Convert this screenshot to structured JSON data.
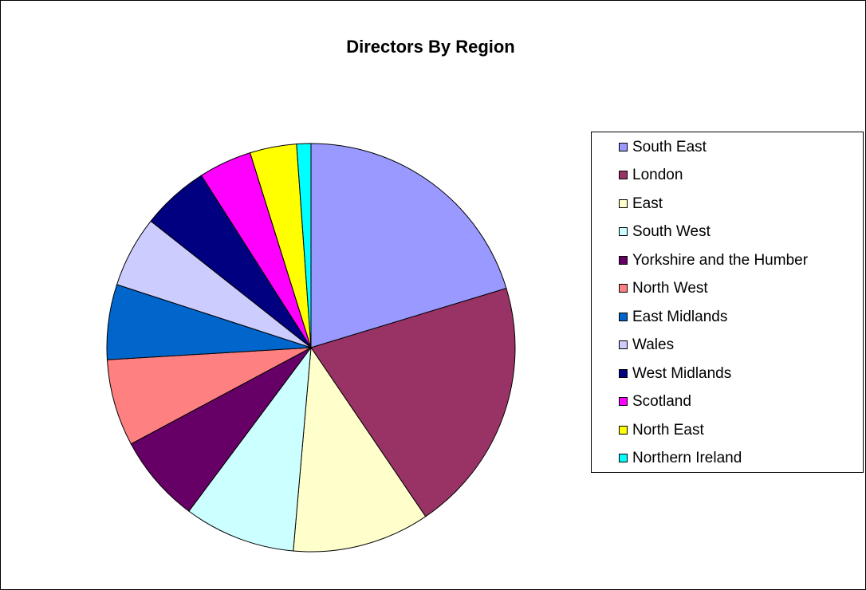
{
  "chart_data": {
    "type": "pie",
    "title": "Directors By Region",
    "legend_position": "right",
    "series": [
      {
        "labels": [
          "South East",
          "London",
          "East",
          "South West",
          "Yorkshire and the Humber",
          "North West",
          "East Midlands",
          "Wales",
          "West Midlands",
          "Scotland",
          "North East",
          "Northern Ireland"
        ],
        "values": [
          19.8,
          19.7,
          10.6,
          8.6,
          6.8,
          6.7,
          5.8,
          5.5,
          5.2,
          4.1,
          3.6,
          1.1
        ],
        "colors": [
          "#9999ff",
          "#993366",
          "#ffffcc",
          "#ccffff",
          "#660066",
          "#ff8080",
          "#0066cc",
          "#ccccff",
          "#000080",
          "#ff00ff",
          "#ffff00",
          "#00ffff"
        ]
      }
    ]
  }
}
